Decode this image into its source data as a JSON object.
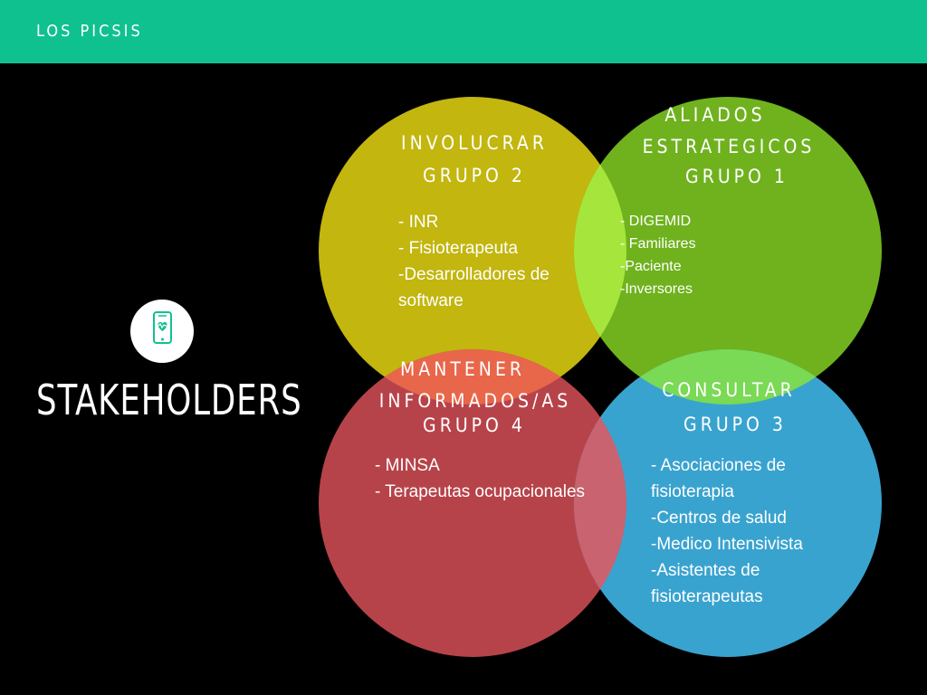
{
  "header": {
    "brand": "LOS PICSIS"
  },
  "logo": {
    "icon": "phone-heart-icon",
    "color": "#10c190"
  },
  "page_title": "STAKEHOLDERS",
  "groups": {
    "g2": {
      "title": "INVOLUCRAR",
      "subtitle": "GRUPO 2",
      "color": "#c2b60f",
      "items": [
        "- INR",
        "- Fisioterapeuta",
        "-Desarrolladores de",
        "software"
      ]
    },
    "g1": {
      "title_line1": "ALIADOS",
      "title_line2": "ESTRATEGICOS",
      "subtitle": "GRUPO 1",
      "color": "#6fb21e",
      "items": [
        "- DIGEMID",
        "- Familiares",
        "-Paciente",
        "-Inversores"
      ]
    },
    "g4": {
      "title_line1": "MANTENER",
      "title_line2": "INFORMADOS/AS",
      "subtitle": "GRUPO 4",
      "color": "#b7434a",
      "items": [
        "- MINSA",
        "- Terapeutas ocupacionales"
      ]
    },
    "g3": {
      "title": "CONSULTAR",
      "subtitle": "GRUPO 3",
      "color": "#39a3cf",
      "items": [
        "- Asociaciones de",
        "fisioterapia",
        "-Centros de salud",
        "-Medico Intensivista",
        "-Asistentes de",
        "fisioterapeutas"
      ]
    }
  },
  "overlap_colors": {
    "g2_g1": "#a6e63c",
    "g2_g4": "#e8664a",
    "g1_g3": "#7ad955",
    "g4_g3": "#c8636f"
  }
}
